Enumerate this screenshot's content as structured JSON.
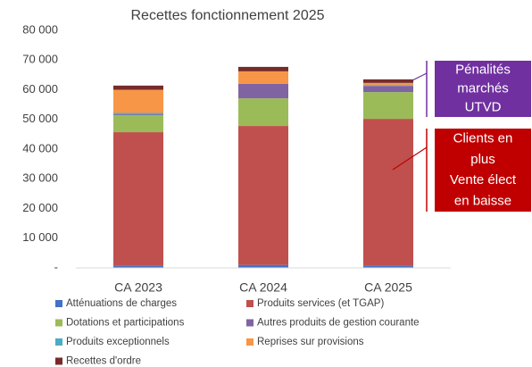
{
  "chart_data": {
    "type": "stacked_bar",
    "title": "Recettes fonctionnement 2025",
    "categories": [
      "CA 2023",
      "CA 2024",
      "CA 2025"
    ],
    "series": [
      {
        "name": "Atténuations de charges",
        "color": "#4472c4",
        "values": [
          700,
          1000,
          800
        ]
      },
      {
        "name": "Produits services (et TGAP)",
        "color": "#c0504d",
        "values": [
          45000,
          46800,
          49400
        ]
      },
      {
        "name": "Dotations et participations",
        "color": "#9bbb59",
        "values": [
          5700,
          9300,
          9000
        ]
      },
      {
        "name": "Autres produits de gestion courante",
        "color": "#8064a2",
        "values": [
          300,
          4900,
          2100
        ]
      },
      {
        "name": "Produits exceptionnels",
        "color": "#4bacc6",
        "values": [
          500,
          200,
          300
        ]
      },
      {
        "name": "Reprises sur provisions",
        "color": "#f79646",
        "values": [
          7800,
          4000,
          700
        ]
      },
      {
        "name": "Recettes d'ordre",
        "color": "#772c2a",
        "values": [
          1400,
          1500,
          1200
        ]
      }
    ],
    "ylim": [
      0,
      80000
    ],
    "yticks": [
      {
        "value": 0,
        "label": "-"
      },
      {
        "value": 10000,
        "label": "10 000"
      },
      {
        "value": 20000,
        "label": "20 000"
      },
      {
        "value": 30000,
        "label": "30 000"
      },
      {
        "value": 40000,
        "label": "40 000"
      },
      {
        "value": 50000,
        "label": "50 000"
      },
      {
        "value": 60000,
        "label": "60 000"
      },
      {
        "value": 70000,
        "label": "70 000"
      },
      {
        "value": 80000,
        "label": "80 000"
      }
    ],
    "grid": false,
    "legend": "bottom",
    "annotations": [
      {
        "lines": [
          "Pénalités",
          "marchés",
          "UTVD"
        ],
        "color": "#7030a0"
      },
      {
        "lines": [
          "Clients en",
          "plus",
          "Vente élect",
          "en baisse"
        ],
        "color": "#c00000"
      }
    ]
  }
}
